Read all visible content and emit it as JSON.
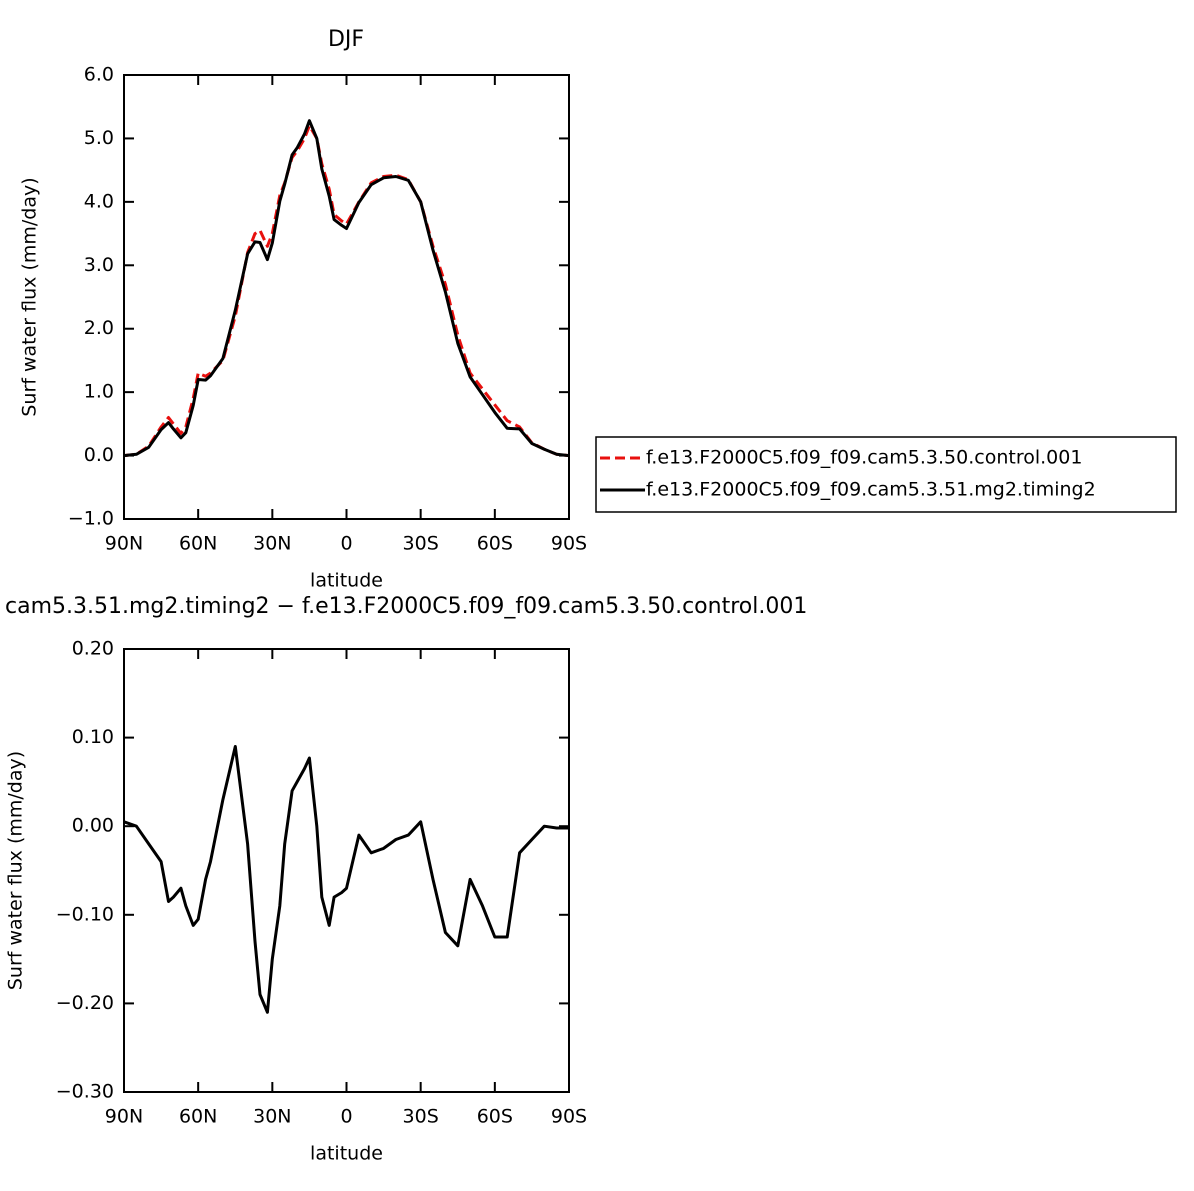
{
  "chart_data": [
    {
      "type": "line",
      "title": "DJF",
      "xlabel": "latitude",
      "ylabel": "Surf water flux (mm/day)",
      "x": [
        90,
        85,
        80,
        75,
        72,
        70,
        67,
        65,
        62,
        60,
        57,
        55,
        50,
        45,
        40,
        37,
        35,
        32,
        30,
        27,
        25,
        22,
        20,
        17,
        15,
        12,
        10,
        7,
        5,
        2,
        0,
        -5,
        -10,
        -15,
        -20,
        -25,
        -30,
        -35,
        -40,
        -45,
        -50,
        -55,
        -60,
        -65,
        -70,
        -75,
        -80,
        -85,
        -90
      ],
      "xlim": [
        90,
        -90
      ],
      "xticks": [
        {
          "value": 90,
          "label": "90N"
        },
        {
          "value": 60,
          "label": "60N"
        },
        {
          "value": 30,
          "label": "30N"
        },
        0,
        {
          "value": -30,
          "label": "30S"
        },
        {
          "value": -60,
          "label": "60S"
        },
        {
          "value": -90,
          "label": "90S"
        }
      ],
      "ylim": [
        -1,
        6
      ],
      "yticks": [
        {
          "value": 6,
          "label": "6.0"
        },
        {
          "value": 5,
          "label": "5.0"
        },
        {
          "value": 4,
          "label": "4.0"
        },
        {
          "value": 3,
          "label": "3.0"
        },
        {
          "value": 2,
          "label": "2.0"
        },
        {
          "value": 1,
          "label": "1.0"
        },
        {
          "value": 0,
          "label": "0.0"
        },
        {
          "value": -1,
          "label": "−1.0"
        }
      ],
      "legend": "right",
      "series": [
        {
          "name": "f.e13.F2000C5.f09_f09.cam5.3.50.control.001",
          "color": "#e8100e",
          "dashed": true,
          "values": [
            0.0,
            0.02,
            0.15,
            0.45,
            0.6,
            0.5,
            0.35,
            0.45,
            0.9,
            1.3,
            1.25,
            1.3,
            1.5,
            2.2,
            3.2,
            3.5,
            3.55,
            3.3,
            3.5,
            4.1,
            4.3,
            4.7,
            4.8,
            5.0,
            5.2,
            5.0,
            4.6,
            4.2,
            3.8,
            3.7,
            3.65,
            4.0,
            4.3,
            4.4,
            4.42,
            4.35,
            4.0,
            3.3,
            2.7,
            1.9,
            1.3,
            1.05,
            0.8,
            0.55,
            0.45,
            0.2,
            0.1,
            0.02,
            0.0
          ]
        },
        {
          "name": "f.e13.F2000C5.f09_f09.cam5.3.51.mg2.timing2",
          "color": "#000000",
          "dashed": false,
          "values": [
            0.0,
            0.02,
            0.13,
            0.41,
            0.52,
            0.42,
            0.28,
            0.36,
            0.79,
            1.2,
            1.19,
            1.26,
            1.53,
            2.29,
            3.18,
            3.37,
            3.36,
            3.09,
            3.35,
            4.01,
            4.28,
            4.74,
            4.85,
            5.07,
            5.28,
            5.0,
            4.52,
            4.09,
            3.72,
            3.63,
            3.58,
            3.99,
            4.27,
            4.38,
            4.4,
            4.34,
            4.0,
            3.24,
            2.58,
            1.77,
            1.24,
            0.96,
            0.68,
            0.43,
            0.42,
            0.19,
            0.1,
            0.02,
            0.0
          ]
        }
      ]
    },
    {
      "type": "line",
      "title": "cam5.3.51.mg2.timing2 − f.e13.F2000C5.f09_f09.cam5.3.50.control.001",
      "xlabel": "latitude",
      "ylabel": "Surf water flux (mm/day)",
      "x": [
        90,
        85,
        80,
        75,
        72,
        70,
        67,
        65,
        62,
        60,
        57,
        55,
        50,
        45,
        40,
        37,
        35,
        32,
        30,
        27,
        25,
        22,
        20,
        17,
        15,
        12,
        10,
        7,
        5,
        2,
        0,
        -5,
        -10,
        -15,
        -20,
        -25,
        -30,
        -35,
        -40,
        -45,
        -50,
        -55,
        -60,
        -65,
        -70,
        -75,
        -80,
        -85,
        -90
      ],
      "xlim": [
        90,
        -90
      ],
      "xticks": [
        {
          "value": 90,
          "label": "90N"
        },
        {
          "value": 60,
          "label": "60N"
        },
        {
          "value": 30,
          "label": "30N"
        },
        0,
        {
          "value": -30,
          "label": "30S"
        },
        {
          "value": -60,
          "label": "60S"
        },
        {
          "value": -90,
          "label": "90S"
        }
      ],
      "ylim": [
        -0.3,
        0.2
      ],
      "yticks": [
        {
          "value": 0.2,
          "label": "0.20"
        },
        {
          "value": 0.1,
          "label": "0.10"
        },
        {
          "value": 0,
          "label": "0.00"
        },
        {
          "value": -0.1,
          "label": "−0.10"
        },
        {
          "value": -0.2,
          "label": "−0.20"
        },
        {
          "value": -0.3,
          "label": "−0.30"
        }
      ],
      "series": [
        {
          "color": "#000000",
          "dashed": false,
          "values": [
            0.005,
            0.0,
            -0.02,
            -0.04,
            -0.085,
            -0.08,
            -0.07,
            -0.09,
            -0.112,
            -0.105,
            -0.06,
            -0.04,
            0.03,
            0.09,
            -0.02,
            -0.13,
            -0.19,
            -0.21,
            -0.15,
            -0.09,
            -0.02,
            0.04,
            0.05,
            0.065,
            0.077,
            0.0,
            -0.08,
            -0.112,
            -0.08,
            -0.075,
            -0.07,
            -0.01,
            -0.03,
            -0.025,
            -0.015,
            -0.01,
            0.005,
            -0.06,
            -0.12,
            -0.135,
            -0.06,
            -0.09,
            -0.125,
            -0.125,
            -0.03,
            -0.015,
            0.0,
            -0.002,
            -0.002
          ]
        }
      ]
    }
  ]
}
